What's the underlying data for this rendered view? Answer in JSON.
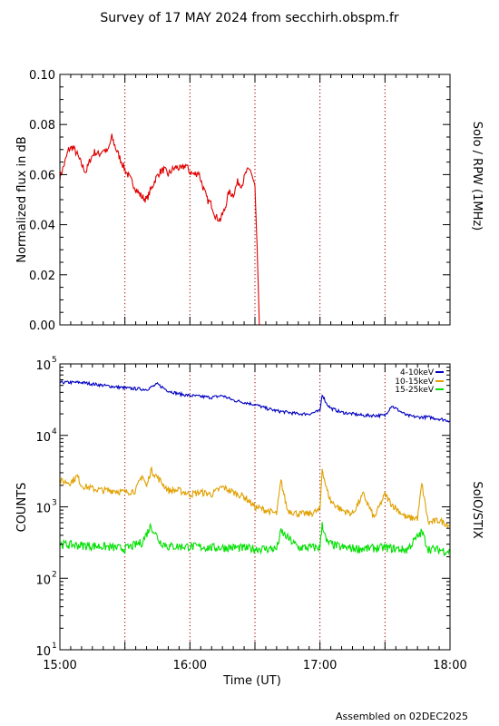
{
  "header": {
    "title": "Survey of 17 MAY 2024 from secchirh.obspm.fr"
  },
  "footer": {
    "assembled": "Assembled on 02DEC2025"
  },
  "colors": {
    "rpw": "#e00000",
    "band1": "#0000c0",
    "band2": "#e0a000",
    "band3": "#00e000",
    "dotted": "#a00000"
  },
  "chart_data": [
    {
      "type": "line",
      "ylabel": "Normalized flux in dB",
      "right_label": "Solo / RPW (1MHz)",
      "xlim": [
        "15:00",
        "18:00"
      ],
      "ylim": [
        0,
        0.1
      ],
      "yticks": [
        "0.00",
        "0.02",
        "0.04",
        "0.06",
        "0.08",
        "0.10"
      ],
      "ytick_values": [
        0,
        0.02,
        0.04,
        0.06,
        0.08,
        0.1
      ],
      "dotted_lines": [
        "15:30",
        "16:00",
        "16:30",
        "17:00",
        "17:30"
      ],
      "series": [
        {
          "x": [
            "15:00",
            "15:02",
            "15:04",
            "15:06",
            "15:08",
            "15:10",
            "15:12",
            "15:14",
            "15:16",
            "15:18",
            "15:20",
            "15:22",
            "15:24",
            "15:26",
            "15:28",
            "15:30",
            "15:32",
            "15:34",
            "15:36",
            "15:38",
            "15:40",
            "15:42",
            "15:44",
            "15:46",
            "15:48",
            "15:50",
            "15:52",
            "15:54",
            "15:56",
            "15:58",
            "16:00",
            "16:02",
            "16:04",
            "16:06",
            "16:08",
            "16:10",
            "16:12",
            "16:14",
            "16:16",
            "16:18",
            "16:20",
            "16:22",
            "16:24",
            "16:26",
            "16:28",
            "16:30",
            "16:31",
            "16:32",
            "18:00"
          ],
          "values": [
            0.059,
            0.064,
            0.07,
            0.071,
            0.068,
            0.064,
            0.061,
            0.066,
            0.069,
            0.068,
            0.07,
            0.069,
            0.075,
            0.07,
            0.066,
            0.062,
            0.059,
            0.056,
            0.053,
            0.051,
            0.05,
            0.054,
            0.058,
            0.061,
            0.062,
            0.06,
            0.062,
            0.063,
            0.062,
            0.064,
            0.061,
            0.06,
            0.061,
            0.055,
            0.05,
            0.048,
            0.043,
            0.042,
            0.046,
            0.053,
            0.052,
            0.057,
            0.056,
            0.061,
            0.062,
            0.055,
            0.03,
            0.0,
            0.0
          ]
        }
      ]
    },
    {
      "type": "line",
      "ylabel": "COUNTS",
      "right_label": "SolO/STIX",
      "xlabel": "Time (UT)",
      "xticks": [
        "15:00",
        "16:00",
        "17:00",
        "18:00"
      ],
      "xlim": [
        "15:00",
        "18:00"
      ],
      "yscale": "log",
      "ylim": [
        10,
        100000
      ],
      "yticks": [
        {
          "base": "10",
          "exp": "1"
        },
        {
          "base": "10",
          "exp": "2"
        },
        {
          "base": "10",
          "exp": "3"
        },
        {
          "base": "10",
          "exp": "4"
        },
        {
          "base": "10",
          "exp": "5"
        }
      ],
      "ytick_values": [
        10,
        100,
        1000,
        10000,
        100000
      ],
      "dotted_lines": [
        "15:30",
        "16:00",
        "16:30",
        "17:00",
        "17:30"
      ],
      "legend": "top-right",
      "series": [
        {
          "name": "4-10keV",
          "x": [
            "15:00",
            "15:10",
            "15:20",
            "15:30",
            "15:35",
            "15:40",
            "15:45",
            "15:50",
            "15:55",
            "16:00",
            "16:05",
            "16:10",
            "16:15",
            "16:20",
            "16:25",
            "16:30",
            "16:35",
            "16:40",
            "16:45",
            "16:50",
            "16:55",
            "17:00",
            "17:01",
            "17:03",
            "17:05",
            "17:10",
            "17:15",
            "17:20",
            "17:25",
            "17:30",
            "17:33",
            "17:40",
            "17:45",
            "17:50",
            "17:55",
            "18:00"
          ],
          "values": [
            55000,
            55000,
            50000,
            46000,
            45000,
            44000,
            52000,
            42000,
            38000,
            36000,
            35000,
            34000,
            36000,
            31000,
            29000,
            27000,
            24000,
            22000,
            21000,
            20000,
            20000,
            22000,
            38000,
            28000,
            24000,
            21000,
            20000,
            19000,
            19000,
            19000,
            26000,
            19000,
            18000,
            18000,
            17000,
            16000
          ]
        },
        {
          "name": "10-15keV",
          "x": [
            "15:00",
            "15:05",
            "15:08",
            "15:10",
            "15:15",
            "15:20",
            "15:25",
            "15:30",
            "15:35",
            "15:38",
            "15:40",
            "15:42",
            "15:45",
            "15:50",
            "15:55",
            "16:00",
            "16:05",
            "16:10",
            "16:15",
            "16:20",
            "16:25",
            "16:30",
            "16:35",
            "16:40",
            "16:42",
            "16:45",
            "16:50",
            "16:55",
            "17:00",
            "17:01",
            "17:03",
            "17:05",
            "17:10",
            "17:15",
            "17:20",
            "17:25",
            "17:30",
            "17:33",
            "17:40",
            "17:45",
            "17:47",
            "17:50",
            "17:55",
            "18:00"
          ],
          "values": [
            2300,
            2200,
            2700,
            2000,
            1800,
            1700,
            1700,
            1600,
            1700,
            2800,
            1900,
            3300,
            2600,
            1700,
            1700,
            1500,
            1600,
            1500,
            1900,
            1600,
            1400,
            1000,
            900,
            800,
            2300,
            900,
            800,
            800,
            900,
            3500,
            1800,
            1200,
            900,
            800,
            1500,
            700,
            1500,
            1100,
            700,
            700,
            2100,
            600,
            650,
            550
          ]
        },
        {
          "name": "15-25keV",
          "x": [
            "15:00",
            "15:10",
            "15:20",
            "15:30",
            "15:38",
            "15:42",
            "15:46",
            "15:50",
            "16:00",
            "16:10",
            "16:20",
            "16:30",
            "16:40",
            "16:42",
            "16:50",
            "17:00",
            "17:01",
            "17:03",
            "17:10",
            "17:20",
            "17:30",
            "17:40",
            "17:47",
            "17:50",
            "18:00"
          ],
          "values": [
            300,
            290,
            280,
            260,
            320,
            550,
            330,
            280,
            280,
            270,
            270,
            260,
            260,
            450,
            270,
            270,
            600,
            320,
            270,
            260,
            270,
            250,
            450,
            260,
            240
          ]
        }
      ]
    }
  ]
}
